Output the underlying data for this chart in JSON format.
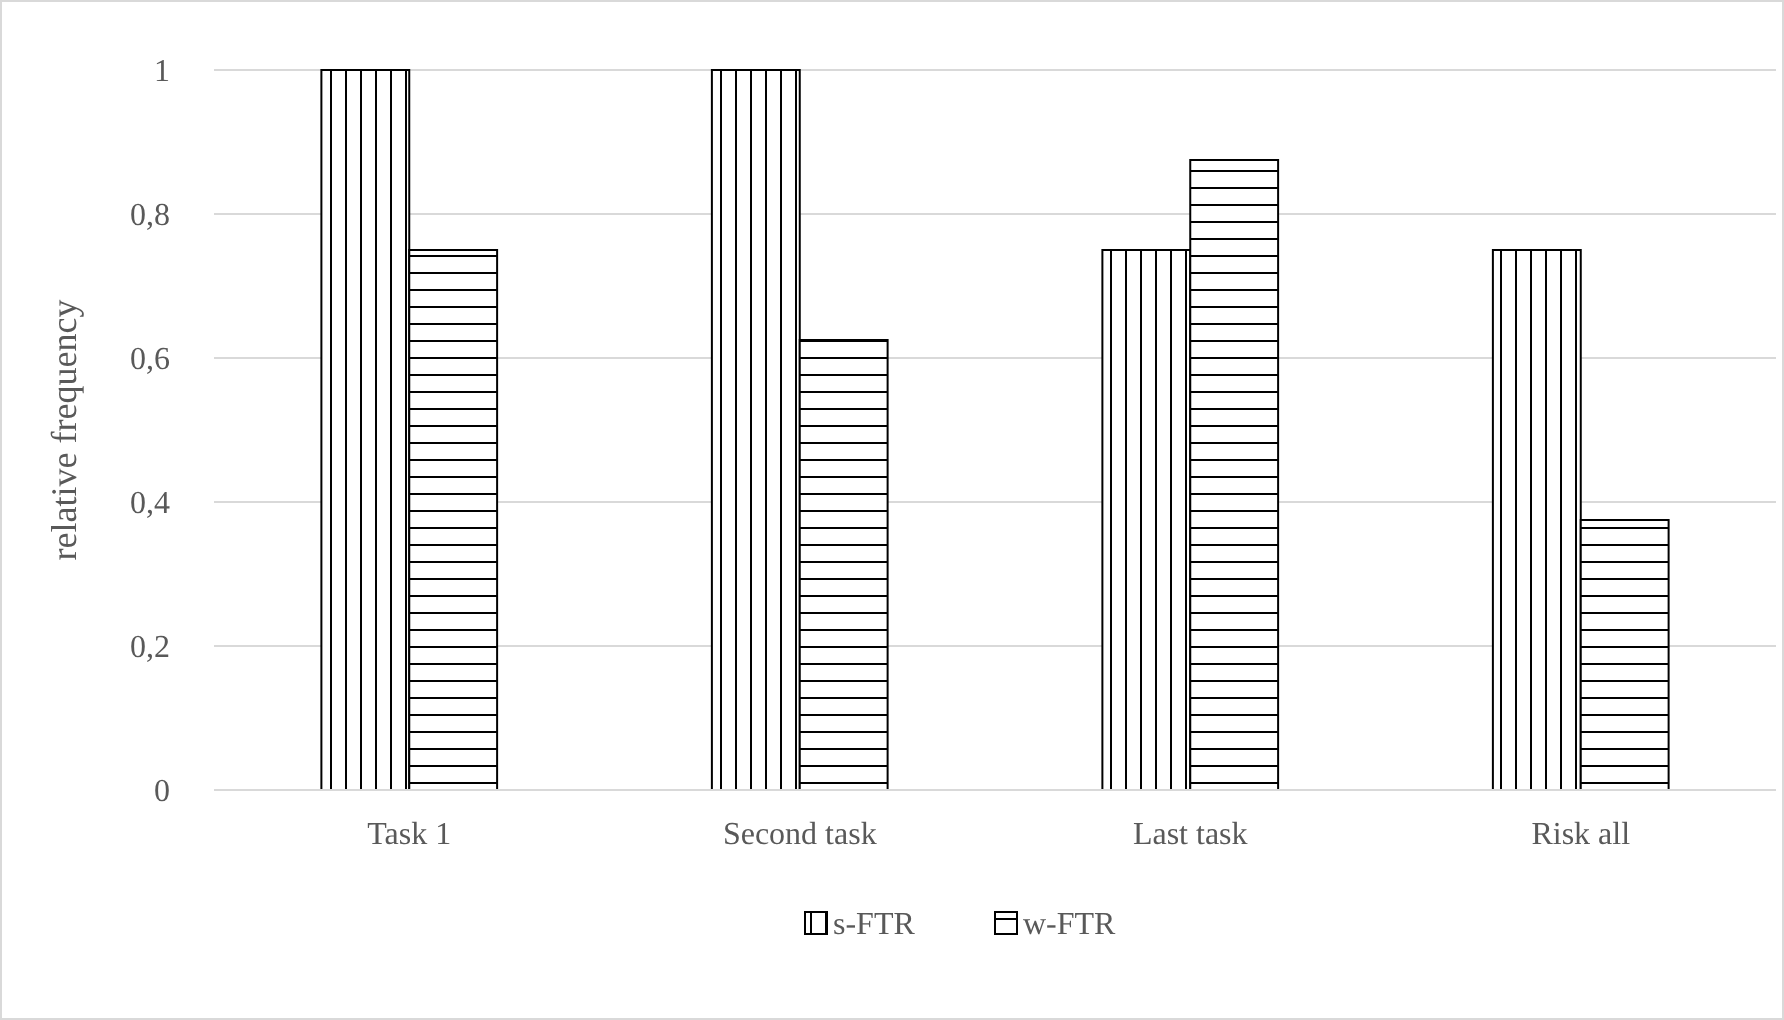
{
  "chart_data": {
    "type": "bar",
    "ylabel": "relative frequency",
    "categories": [
      "Task 1",
      "Second task",
      "Last task",
      "Risk all"
    ],
    "series": [
      {
        "name": "s-FTR",
        "color": "#000000",
        "values": [
          1,
          1,
          0.75,
          0.75
        ]
      },
      {
        "name": "w-FTR",
        "color": "#000000",
        "values": [
          0.75,
          0.625,
          0.875,
          0.375
        ]
      }
    ],
    "ylim": [
      0,
      1
    ],
    "yticks": [
      0,
      {
        "value": 0.2,
        "label": "0,2"
      },
      {
        "value": 0.4,
        "label": "0,4"
      },
      {
        "value": 0.6,
        "label": "0,6"
      },
      {
        "value": 0.8,
        "label": "0,8"
      },
      1
    ],
    "grid": "y",
    "legend": "bottom"
  }
}
